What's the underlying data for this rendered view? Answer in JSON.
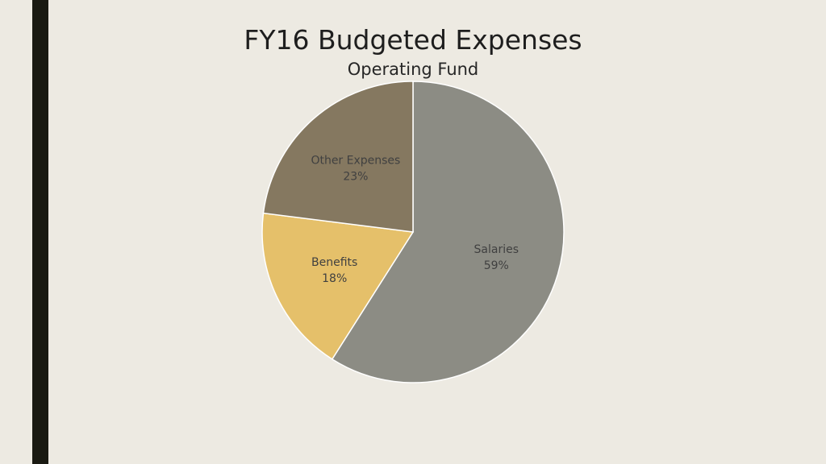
{
  "colors": {
    "background": "#edeae2",
    "side_bar": "#1a1a12",
    "slice_border": "#ffffff"
  },
  "chart_data": {
    "type": "pie",
    "title": "FY16 Budgeted Expenses",
    "subtitle": "Operating Fund",
    "slices": [
      {
        "label": "Salaries",
        "value": 59,
        "value_label": "59%",
        "color": "#8c8c84"
      },
      {
        "label": "Benefits",
        "value": 18,
        "value_label": "18%",
        "color": "#e5c06a"
      },
      {
        "label": "Other Expenses",
        "value": 23,
        "value_label": "23%",
        "color": "#857860"
      }
    ],
    "start_angle_deg": 0,
    "direction": "clockwise",
    "legend": "none",
    "data_labels": "inside"
  }
}
